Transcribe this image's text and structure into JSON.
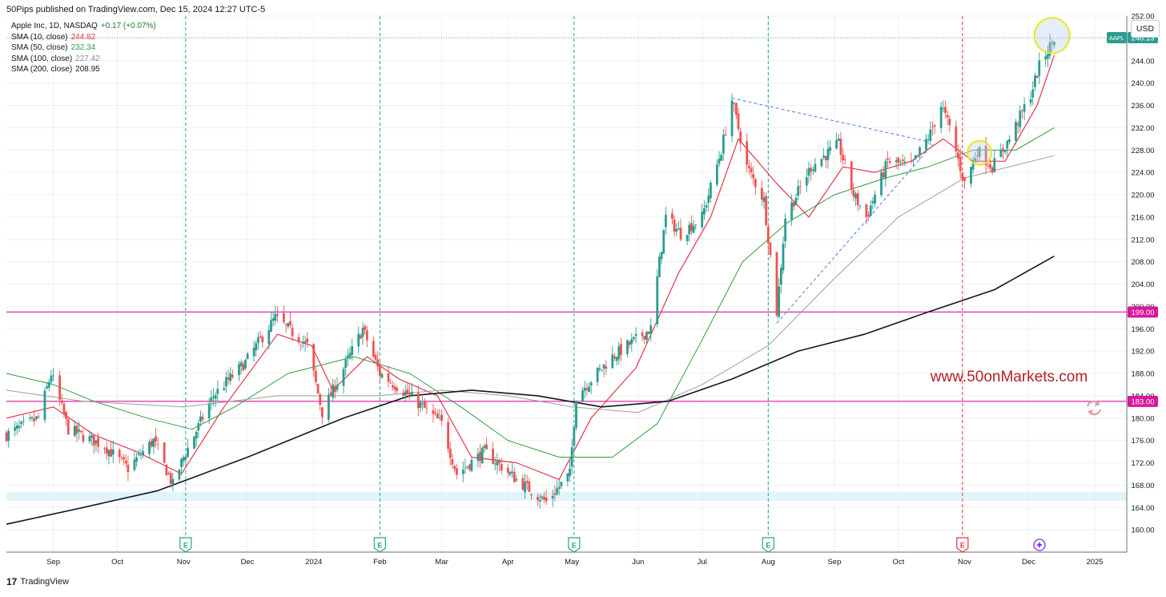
{
  "header": {
    "published": "50Pips published on TradingView.com, Dec 15, 2024 12:27 UTC-5"
  },
  "legend": {
    "symbol": "Apple Inc, 1D, NASDAQ",
    "change": "+0.17 (+0.07%)",
    "items": [
      {
        "label": "SMA (10, close)",
        "value": "244.82",
        "color": "#e5334a"
      },
      {
        "label": "SMA (50, close)",
        "value": "232.34",
        "color": "#2e9e3e"
      },
      {
        "label": "SMA (100, close)",
        "value": "227.42",
        "color": "#9e9e9e"
      },
      {
        "label": "SMA (200, close)",
        "value": "208.95",
        "color": "#131722"
      }
    ]
  },
  "currency_button": "USD",
  "watermark": "www.50onMarkets.com",
  "footer": {
    "brand": "TradingView",
    "logo": "17"
  },
  "colors": {
    "up": "#2a9d8f",
    "down": "#ef5350",
    "level": "#d9169c",
    "grid": "#eef0f3"
  },
  "chart_data": {
    "type": "candlestick",
    "symbol": "AAPL",
    "interval": "1D",
    "exchange": "NASDAQ",
    "y_range": [
      156.0,
      252.0
    ],
    "y_ticks": [
      "160.00",
      "164.00",
      "168.00",
      "172.00",
      "176.00",
      "180.00",
      "184.00",
      "188.00",
      "192.00",
      "196.00",
      "200.00",
      "204.00",
      "208.00",
      "212.00",
      "216.00",
      "220.00",
      "224.00",
      "228.00",
      "232.00",
      "236.00",
      "240.00",
      "244.00",
      "248.00",
      "252.00"
    ],
    "x_range": [
      "2023-08-10",
      "2025-01-16"
    ],
    "x_ticks": [
      {
        "date": "2023-09-01",
        "label": "Sep"
      },
      {
        "date": "2023-10-01",
        "label": "Oct"
      },
      {
        "date": "2023-11-01",
        "label": "Nov"
      },
      {
        "date": "2023-12-01",
        "label": "Dec"
      },
      {
        "date": "2024-01-01",
        "label": "2024"
      },
      {
        "date": "2024-02-01",
        "label": "Feb"
      },
      {
        "date": "2024-03-01",
        "label": "Mar"
      },
      {
        "date": "2024-04-01",
        "label": "Apr"
      },
      {
        "date": "2024-05-01",
        "label": "May"
      },
      {
        "date": "2024-06-01",
        "label": "Jun"
      },
      {
        "date": "2024-07-01",
        "label": "Jul"
      },
      {
        "date": "2024-08-01",
        "label": "Aug"
      },
      {
        "date": "2024-09-01",
        "label": "Sep"
      },
      {
        "date": "2024-10-01",
        "label": "Oct"
      },
      {
        "date": "2024-11-01",
        "label": "Nov"
      },
      {
        "date": "2024-12-01",
        "label": "Dec"
      },
      {
        "date": "2025-01-01",
        "label": "2025"
      }
    ],
    "price_anchors": [
      [
        "2023-08-10",
        177
      ],
      [
        "2023-08-25",
        180
      ],
      [
        "2023-08-31",
        188
      ],
      [
        "2023-09-08",
        178
      ],
      [
        "2023-09-25",
        175
      ],
      [
        "2023-10-06",
        171
      ],
      [
        "2023-10-18",
        176
      ],
      [
        "2023-10-27",
        168
      ],
      [
        "2023-11-01",
        173
      ],
      [
        "2023-11-15",
        184
      ],
      [
        "2023-11-30",
        190
      ],
      [
        "2023-12-14",
        198
      ],
      [
        "2023-12-29",
        193
      ],
      [
        "2024-01-05",
        181
      ],
      [
        "2024-01-24",
        196
      ],
      [
        "2024-02-01",
        188
      ],
      [
        "2024-02-15",
        184
      ],
      [
        "2024-03-01",
        179
      ],
      [
        "2024-03-08",
        170
      ],
      [
        "2024-03-21",
        174
      ],
      [
        "2024-04-05",
        169
      ],
      [
        "2024-04-19",
        165
      ],
      [
        "2024-04-30",
        170
      ],
      [
        "2024-05-03",
        184
      ],
      [
        "2024-05-20",
        191
      ],
      [
        "2024-06-07",
        196
      ],
      [
        "2024-06-11",
        208
      ],
      [
        "2024-06-14",
        216
      ],
      [
        "2024-06-21",
        213
      ],
      [
        "2024-07-01",
        216
      ],
      [
        "2024-07-10",
        228
      ],
      [
        "2024-07-15",
        237
      ],
      [
        "2024-07-22",
        225
      ],
      [
        "2024-07-30",
        219
      ],
      [
        "2024-08-05",
        199
      ],
      [
        "2024-08-09",
        216
      ],
      [
        "2024-08-21",
        225
      ],
      [
        "2024-09-03",
        229
      ],
      [
        "2024-09-10",
        220
      ],
      [
        "2024-09-16",
        216
      ],
      [
        "2024-09-26",
        226
      ],
      [
        "2024-10-07",
        225
      ],
      [
        "2024-10-16",
        231
      ],
      [
        "2024-10-21",
        236
      ],
      [
        "2024-10-25",
        232
      ],
      [
        "2024-11-01",
        222
      ],
      [
        "2024-11-07",
        228
      ],
      [
        "2024-11-14",
        225
      ],
      [
        "2024-11-22",
        230
      ],
      [
        "2024-12-02",
        238
      ],
      [
        "2024-12-06",
        243
      ],
      [
        "2024-12-13",
        248
      ]
    ],
    "last_price": {
      "label": "AAPL",
      "value": "248.13"
    },
    "sma_series": [
      {
        "name": "SMA (10, close)",
        "color": "#e5334a",
        "width": 1.2,
        "points": [
          [
            "2023-08-10",
            180
          ],
          [
            "2023-09-01",
            182
          ],
          [
            "2023-09-20",
            177
          ],
          [
            "2023-10-10",
            174
          ],
          [
            "2023-10-31",
            170
          ],
          [
            "2023-11-20",
            182
          ],
          [
            "2023-12-15",
            195
          ],
          [
            "2023-12-31",
            193
          ],
          [
            "2024-01-10",
            185
          ],
          [
            "2024-01-26",
            191
          ],
          [
            "2024-02-10",
            187
          ],
          [
            "2024-02-28",
            184
          ],
          [
            "2024-03-15",
            173
          ],
          [
            "2024-04-05",
            172
          ],
          [
            "2024-04-25",
            169
          ],
          [
            "2024-05-10",
            180
          ],
          [
            "2024-05-31",
            189
          ],
          [
            "2024-06-20",
            206
          ],
          [
            "2024-07-05",
            216
          ],
          [
            "2024-07-18",
            230
          ],
          [
            "2024-08-05",
            222
          ],
          [
            "2024-08-20",
            216
          ],
          [
            "2024-09-05",
            225
          ],
          [
            "2024-09-20",
            224
          ],
          [
            "2024-10-07",
            226
          ],
          [
            "2024-10-22",
            230
          ],
          [
            "2024-11-05",
            226
          ],
          [
            "2024-11-20",
            226
          ],
          [
            "2024-12-05",
            236
          ],
          [
            "2024-12-13",
            245
          ]
        ]
      },
      {
        "name": "SMA (50, close)",
        "color": "#2e9e3e",
        "width": 1.0,
        "points": [
          [
            "2023-08-10",
            188
          ],
          [
            "2023-09-01",
            186
          ],
          [
            "2023-09-20",
            183
          ],
          [
            "2023-10-15",
            180
          ],
          [
            "2023-11-05",
            178
          ],
          [
            "2023-11-25",
            182
          ],
          [
            "2023-12-20",
            188
          ],
          [
            "2024-01-20",
            191
          ],
          [
            "2024-02-15",
            188
          ],
          [
            "2024-03-10",
            182
          ],
          [
            "2024-04-01",
            176
          ],
          [
            "2024-04-25",
            173
          ],
          [
            "2024-05-20",
            173
          ],
          [
            "2024-06-10",
            179
          ],
          [
            "2024-07-01",
            194
          ],
          [
            "2024-07-20",
            208
          ],
          [
            "2024-08-10",
            215
          ],
          [
            "2024-09-01",
            220
          ],
          [
            "2024-09-25",
            223
          ],
          [
            "2024-10-15",
            225
          ],
          [
            "2024-11-05",
            228
          ],
          [
            "2024-11-25",
            228
          ],
          [
            "2024-12-13",
            232
          ]
        ]
      },
      {
        "name": "SMA (100, close)",
        "color": "#9e9e9e",
        "width": 1.0,
        "points": [
          [
            "2023-08-10",
            185
          ],
          [
            "2023-09-15",
            183
          ],
          [
            "2023-11-01",
            182
          ],
          [
            "2023-12-15",
            184
          ],
          [
            "2024-01-31",
            184
          ],
          [
            "2024-03-01",
            185
          ],
          [
            "2024-04-01",
            184
          ],
          [
            "2024-05-01",
            182
          ],
          [
            "2024-06-01",
            181
          ],
          [
            "2024-07-01",
            186
          ],
          [
            "2024-08-01",
            193
          ],
          [
            "2024-09-01",
            205
          ],
          [
            "2024-10-01",
            216
          ],
          [
            "2024-11-01",
            223
          ],
          [
            "2024-12-13",
            227
          ]
        ]
      },
      {
        "name": "SMA (200, close)",
        "color": "#131722",
        "width": 1.6,
        "points": [
          [
            "2023-08-10",
            161
          ],
          [
            "2023-09-15",
            164
          ],
          [
            "2023-10-20",
            167
          ],
          [
            "2023-12-01",
            173
          ],
          [
            "2024-01-15",
            180
          ],
          [
            "2024-02-15",
            184
          ],
          [
            "2024-03-15",
            185
          ],
          [
            "2024-04-15",
            184
          ],
          [
            "2024-05-15",
            182
          ],
          [
            "2024-06-15",
            183
          ],
          [
            "2024-07-15",
            187
          ],
          [
            "2024-08-15",
            192
          ],
          [
            "2024-09-15",
            195
          ],
          [
            "2024-10-15",
            199
          ],
          [
            "2024-11-15",
            203
          ],
          [
            "2024-12-13",
            209
          ]
        ]
      }
    ],
    "horizontal_levels": [
      {
        "value": "199.00"
      },
      {
        "value": "183.00"
      }
    ],
    "support_zone": [
      165.2,
      166.8
    ],
    "earnings_markers": [
      {
        "date": "2023-11-02",
        "label": "E"
      },
      {
        "date": "2024-02-01",
        "label": "E"
      },
      {
        "date": "2024-05-02",
        "label": "E"
      },
      {
        "date": "2024-08-01",
        "label": "E"
      },
      {
        "date": "2024-10-31",
        "label": "E"
      }
    ],
    "trendlines": [
      {
        "from": [
          "2024-07-15",
          237.3
        ],
        "to": [
          "2024-10-15",
          229.5
        ]
      },
      {
        "from": [
          "2024-08-05",
          197
        ],
        "to": [
          "2024-10-17",
          229
        ]
      }
    ],
    "circles": [
      {
        "date": "2024-12-12",
        "price": 248.5
      },
      {
        "date": "2024-11-08",
        "price": 227.5
      }
    ],
    "grid": true
  }
}
